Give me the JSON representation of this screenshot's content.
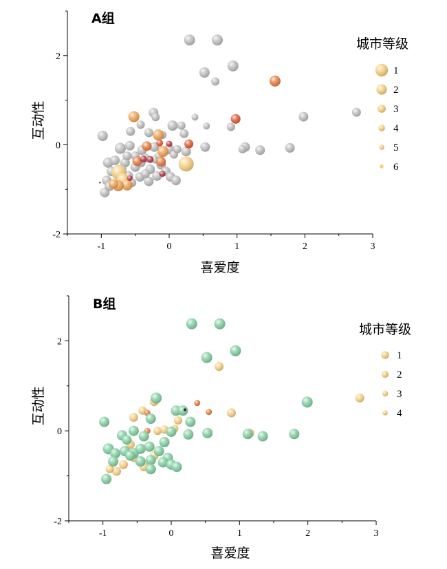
{
  "chart_data": [
    {
      "id": "A",
      "type": "scatter",
      "title": "A组",
      "xlabel": "喜爱度",
      "ylabel": "互动性",
      "xlim": [
        -1.5,
        3
      ],
      "ylim": [
        -2,
        3
      ],
      "xticks": [
        -1,
        0,
        1,
        2,
        3
      ],
      "yticks": [
        -2,
        0,
        2
      ],
      "legend": {
        "title": "城市等级",
        "position": "top-right",
        "entries": [
          {
            "label": "1",
            "color": "#f6cf80",
            "size": 14
          },
          {
            "label": "2",
            "color": "#f6cf80",
            "size": 11
          },
          {
            "label": "3",
            "color": "#f6cf80",
            "size": 8
          },
          {
            "label": "4",
            "color": "#f6cf80",
            "size": 6
          },
          {
            "label": "5",
            "color": "#f6cf80",
            "size": 4
          },
          {
            "label": "6",
            "color": "#f6cf80",
            "size": 2.5
          }
        ]
      },
      "series": [
        {
          "color": "#bdbdbd",
          "points": [
            [
              0.3,
              2.35,
              8
            ],
            [
              0.71,
              2.35,
              8
            ],
            [
              0.94,
              1.77,
              8
            ],
            [
              0.52,
              1.62,
              7.5
            ],
            [
              0.68,
              1.42,
              6
            ],
            [
              2.76,
              0.73,
              6.5
            ],
            [
              1.98,
              0.63,
              7
            ],
            [
              -0.23,
              0.72,
              7
            ],
            [
              -0.2,
              0.62,
              6
            ],
            [
              0.38,
              0.62,
              5
            ],
            [
              0.55,
              0.42,
              5
            ],
            [
              0.05,
              0.43,
              7.5
            ],
            [
              0.18,
              0.43,
              6
            ],
            [
              0.91,
              0.4,
              6
            ],
            [
              -0.42,
              0.45,
              6
            ],
            [
              -0.57,
              0.3,
              6.5
            ],
            [
              -0.98,
              0.2,
              7.5
            ],
            [
              -0.3,
              0.27,
              6.5
            ],
            [
              0.22,
              0.25,
              6.5
            ],
            [
              -0.1,
              0.22,
              6
            ],
            [
              1.12,
              -0.05,
              7
            ],
            [
              1.34,
              -0.12,
              7
            ],
            [
              1.78,
              -0.07,
              7
            ],
            [
              1.08,
              -0.1,
              6
            ],
            [
              0.53,
              -0.05,
              7
            ],
            [
              0.25,
              -0.15,
              7
            ],
            [
              -0.72,
              -0.08,
              8
            ],
            [
              -0.58,
              -0.02,
              7
            ],
            [
              -0.4,
              -0.12,
              7
            ],
            [
              -0.22,
              -0.05,
              7
            ],
            [
              0.0,
              -0.1,
              7.5
            ],
            [
              -0.9,
              -0.4,
              7.5
            ],
            [
              -0.8,
              -0.35,
              7
            ],
            [
              -0.65,
              -0.4,
              7
            ],
            [
              -0.5,
              -0.5,
              7
            ],
            [
              -0.42,
              -0.4,
              7
            ],
            [
              -0.28,
              -0.55,
              7
            ],
            [
              -0.12,
              -0.45,
              7
            ],
            [
              -0.05,
              -0.6,
              7
            ],
            [
              -0.85,
              -0.6,
              7
            ],
            [
              -0.7,
              -0.55,
              7
            ],
            [
              -0.6,
              -0.7,
              7
            ],
            [
              -0.43,
              -0.72,
              7
            ],
            [
              -0.3,
              -0.82,
              7
            ],
            [
              -0.18,
              -0.7,
              7
            ],
            [
              0.02,
              -0.72,
              7
            ],
            [
              0.1,
              -0.8,
              7
            ],
            [
              -0.92,
              -0.8,
              7
            ],
            [
              -0.95,
              -1.07,
              7
            ],
            [
              -0.88,
              -0.93,
              7
            ],
            [
              -0.75,
              -0.9,
              7
            ],
            [
              -0.55,
              -0.85,
              6.5
            ],
            [
              -0.35,
              -0.65,
              6.5
            ],
            [
              -0.2,
              -0.32,
              6.5
            ],
            [
              -0.15,
              -0.25,
              6
            ],
            [
              0.07,
              -0.22,
              6
            ],
            [
              0.12,
              -0.1,
              6
            ],
            [
              -0.5,
              -0.25,
              6.5
            ],
            [
              -0.62,
              -0.25,
              6.5
            ],
            [
              -0.35,
              -0.3,
              6.5
            ]
          ]
        },
        {
          "color": "#f6cf80",
          "points": [
            [
              0.25,
              -0.43,
              11
            ],
            [
              -0.74,
              -0.62,
              11
            ],
            [
              -0.68,
              -0.78,
              9
            ]
          ]
        },
        {
          "color": "#f0a050",
          "points": [
            [
              -0.52,
              0.63,
              8
            ],
            [
              -0.16,
              0.22,
              8
            ],
            [
              -0.09,
              -0.15,
              8
            ],
            [
              -0.62,
              -0.9,
              8
            ],
            [
              -0.75,
              -0.92,
              8
            ],
            [
              -0.82,
              -0.88,
              7
            ]
          ]
        },
        {
          "color": "#e67a3a",
          "points": [
            [
              1.56,
              1.43,
              8
            ],
            [
              -0.33,
              -0.03,
              7
            ],
            [
              -0.47,
              -0.37,
              7
            ],
            [
              -0.12,
              -0.38,
              7
            ]
          ]
        },
        {
          "color": "#e0552e",
          "points": [
            [
              0.98,
              0.58,
              7
            ],
            [
              0.29,
              0.02,
              6.5
            ],
            [
              -0.14,
              0.04,
              5
            ]
          ]
        },
        {
          "color": "#b83340",
          "points": [
            [
              -0.38,
              -0.32,
              5
            ],
            [
              -0.28,
              -0.33,
              5
            ],
            [
              0.0,
              0.02,
              4.5
            ],
            [
              -0.1,
              -0.65,
              4.5
            ],
            [
              -0.58,
              -0.75,
              4
            ]
          ]
        },
        {
          "color": "#222222",
          "points": [
            [
              -1.02,
              -0.85,
              1.2
            ]
          ]
        }
      ]
    },
    {
      "id": "B",
      "type": "scatter",
      "title": "B组",
      "xlabel": "喜爱度",
      "ylabel": "互动性",
      "xlim": [
        -1.5,
        3
      ],
      "ylim": [
        -2,
        3
      ],
      "xticks": [
        -1,
        0,
        1,
        2,
        3
      ],
      "yticks": [
        -2,
        0,
        2
      ],
      "legend": {
        "title": "城市等级",
        "position": "top-right",
        "entries": [
          {
            "label": "1",
            "color": "#f6cf80",
            "size": 7.5
          },
          {
            "label": "2",
            "color": "#f6cf80",
            "size": 6.5
          },
          {
            "label": "3",
            "color": "#f6cf80",
            "size": 5
          },
          {
            "label": "4",
            "color": "#f6cf80",
            "size": 4
          }
        ]
      },
      "series": [
        {
          "color": "#f6cf80",
          "points": [
            [
              0.7,
              1.43,
              6.5
            ],
            [
              2.76,
              0.73,
              6.5
            ],
            [
              0.88,
              0.4,
              6.5
            ],
            [
              1.15,
              -0.05,
              6.5
            ],
            [
              -0.25,
              0.65,
              6.5
            ],
            [
              -0.55,
              0.3,
              6.5
            ],
            [
              -0.42,
              0.45,
              6
            ],
            [
              0.1,
              0.23,
              6
            ],
            [
              -0.2,
              0.0,
              6
            ],
            [
              -0.1,
              0.03,
              6
            ],
            [
              -0.6,
              -0.3,
              6.5
            ],
            [
              -0.25,
              -0.55,
              6.5
            ],
            [
              -0.4,
              -0.8,
              6.5
            ],
            [
              -0.7,
              -0.75,
              6.5
            ],
            [
              -0.8,
              -0.9,
              6.5
            ],
            [
              -0.9,
              -0.85,
              6
            ],
            [
              -0.55,
              -0.6,
              6
            ],
            [
              0.05,
              0.05,
              5.5
            ]
          ]
        },
        {
          "color": "#e67a3a",
          "points": [
            [
              0.38,
              0.62,
              4.5
            ],
            [
              0.55,
              0.42,
              4.5
            ],
            [
              -0.35,
              0.4,
              4.5
            ],
            [
              -0.35,
              0.0,
              4.5
            ]
          ]
        },
        {
          "color": "#7fcfa0",
          "points": [
            [
              0.3,
              2.38,
              8
            ],
            [
              0.71,
              2.38,
              8
            ],
            [
              0.94,
              1.78,
              8
            ],
            [
              0.52,
              1.63,
              8
            ],
            [
              1.99,
              0.64,
              8
            ],
            [
              -0.22,
              0.73,
              8
            ],
            [
              0.07,
              0.45,
              7.5
            ],
            [
              0.17,
              0.45,
              7.5
            ],
            [
              0.28,
              0.2,
              7.5
            ],
            [
              -0.3,
              0.27,
              7.5
            ],
            [
              -0.98,
              0.2,
              7.5
            ],
            [
              -0.55,
              0.0,
              7.5
            ],
            [
              0.25,
              -0.08,
              7.5
            ],
            [
              0.53,
              -0.05,
              7.5
            ],
            [
              0.0,
              -0.02,
              7.5
            ],
            [
              1.12,
              -0.07,
              7.5
            ],
            [
              1.34,
              -0.12,
              7.5
            ],
            [
              1.8,
              -0.07,
              7.5
            ],
            [
              -0.72,
              -0.1,
              7.5
            ],
            [
              -0.4,
              -0.12,
              7.5
            ],
            [
              -0.92,
              -0.4,
              8
            ],
            [
              -0.82,
              -0.5,
              7.5
            ],
            [
              -0.68,
              -0.45,
              7.5
            ],
            [
              -0.55,
              -0.5,
              7.5
            ],
            [
              -0.45,
              -0.4,
              7.5
            ],
            [
              -0.32,
              -0.35,
              7.5
            ],
            [
              -0.18,
              -0.45,
              7.5
            ],
            [
              -0.05,
              -0.6,
              7.5
            ],
            [
              -0.12,
              -0.7,
              7.5
            ],
            [
              -0.3,
              -0.65,
              7.5
            ],
            [
              -0.45,
              -0.68,
              7.5
            ],
            [
              -0.6,
              -0.55,
              7.5
            ],
            [
              -0.85,
              -0.68,
              7.5
            ],
            [
              -0.95,
              -1.07,
              7.5
            ],
            [
              -0.3,
              -0.85,
              7.5
            ],
            [
              0.0,
              -0.75,
              7.5
            ],
            [
              0.08,
              -0.8,
              7.5
            ],
            [
              -0.1,
              -0.25,
              7.5
            ],
            [
              -0.65,
              -0.2,
              7
            ]
          ]
        },
        {
          "color": "#222222",
          "points": [
            [
              0.2,
              0.47,
              2
            ]
          ]
        }
      ]
    }
  ]
}
